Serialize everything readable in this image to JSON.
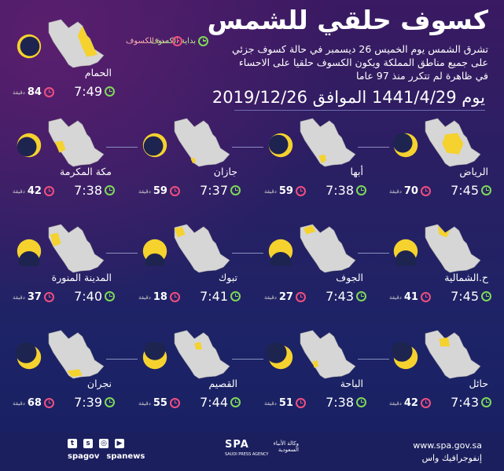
{
  "header": {
    "title": "كسوف حلقي للشمس",
    "intro": "تشرق الشمس يوم الخميس 26 ديسمبر في حالة كسوف جزئي على جميع مناطق المملكة ويكون الكسوف حلقيا على الاحساء في ظاهرة لم تتكرر منذ 97 عاما",
    "date": "يوم 1441/4/29 الموافق 2019/12/26"
  },
  "legend": {
    "start_label": "بداية الكسوف",
    "duration_label": "مدة الكسوف"
  },
  "duration_unit": "دقيقة",
  "colors": {
    "land": "#d6d6d6",
    "highlight": "#f5d22e",
    "sun": "#f5d22e",
    "moon": "#1e2450",
    "start_icon": "#7ed957",
    "duration_icon": "#f04f80"
  },
  "cities": [
    {
      "name": "الحمام",
      "start_time": "7:49",
      "duration": "84"
    },
    {
      "name": "الرياض",
      "start_time": "7:45",
      "duration": "70"
    },
    {
      "name": "أبها",
      "start_time": "7:38",
      "duration": "59"
    },
    {
      "name": "جازان",
      "start_time": "7:37",
      "duration": "59"
    },
    {
      "name": "مكة المكرمة",
      "start_time": "7:38",
      "duration": "42"
    },
    {
      "name": "ح.الشمالية",
      "start_time": "7:45",
      "duration": "41"
    },
    {
      "name": "الجوف",
      "start_time": "7:43",
      "duration": "27"
    },
    {
      "name": "تبوك",
      "start_time": "7:41",
      "duration": "18"
    },
    {
      "name": "المدينة المنورة",
      "start_time": "7:40",
      "duration": "37"
    },
    {
      "name": "حائل",
      "start_time": "7:43",
      "duration": "42"
    },
    {
      "name": "الباحة",
      "start_time": "7:38",
      "duration": "51"
    },
    {
      "name": "القصيم",
      "start_time": "7:44",
      "duration": "55"
    },
    {
      "name": "نجران",
      "start_time": "7:39",
      "duration": "68"
    }
  ],
  "footer": {
    "handle_1": "spagov",
    "handle_2": "spanews",
    "logo_en": "SPA",
    "logo_en_sub": "SAUDI PRESS AGENCY",
    "logo_ar": "وكالة الأنباء السعودية",
    "website": "www.spa.gov.sa",
    "credit": "إنفوجرافيك واس"
  }
}
